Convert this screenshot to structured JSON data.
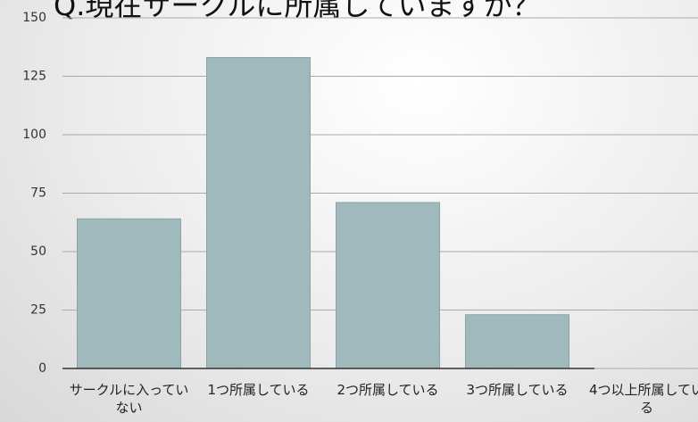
{
  "chart_data": {
    "type": "bar",
    "title": "Q.現在サークルに所属していますか？",
    "categories": [
      "サークルに入っていない",
      "1つ所属している",
      "2つ所属している",
      "3つ所属している",
      "4つ以上所属している"
    ],
    "values": [
      64,
      133,
      71,
      23,
      0
    ],
    "color": "#a0b9bd",
    "ylim": [
      0,
      150
    ],
    "yticks": [
      0,
      25,
      50,
      75,
      100,
      125,
      150
    ],
    "grid": true
  }
}
